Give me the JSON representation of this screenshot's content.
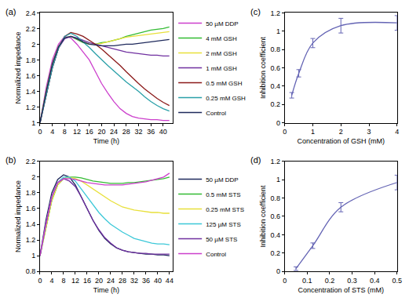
{
  "chart_data": [
    {
      "type": "line",
      "annotations": [
        "(a)"
      ],
      "x_label": "Time (h)",
      "y_label": "Normalized impedance",
      "x": [
        0,
        2,
        4,
        6,
        8,
        10,
        12,
        14,
        16,
        18,
        20,
        22,
        24,
        26,
        28,
        30,
        32,
        34,
        36,
        38,
        40,
        42
      ],
      "series": [
        {
          "name": "50 µM DDP",
          "color": "#cc3fcc",
          "values": [
            1,
            1.45,
            1.8,
            2.0,
            2.1,
            2.08,
            2.0,
            1.9,
            1.8,
            1.65,
            1.5,
            1.38,
            1.27,
            1.18,
            1.12,
            1.08,
            1.06,
            1.05,
            1.04,
            1.04,
            1.03,
            1.03
          ]
        },
        {
          "name": "4 mM GSH",
          "color": "#33bb33",
          "values": [
            1,
            1.4,
            1.75,
            1.97,
            2.08,
            2.1,
            2.06,
            2.02,
            2.0,
            2.0,
            2.02,
            2.03,
            2.05,
            2.07,
            2.1,
            2.12,
            2.14,
            2.16,
            2.18,
            2.19,
            2.2,
            2.22
          ]
        },
        {
          "name": "2 mM GSH",
          "color": "#e8e03a",
          "values": [
            1,
            1.4,
            1.75,
            1.97,
            2.08,
            2.1,
            2.07,
            2.03,
            2.0,
            2.0,
            2.01,
            2.03,
            2.05,
            2.07,
            2.09,
            2.1,
            2.11,
            2.12,
            2.13,
            2.14,
            2.15,
            2.16
          ]
        },
        {
          "name": "1 mM GSH",
          "color": "#7030a0",
          "values": [
            1,
            1.35,
            1.7,
            1.95,
            2.07,
            2.1,
            2.08,
            2.05,
            2.02,
            2.0,
            1.98,
            1.96,
            1.94,
            1.92,
            1.9,
            1.89,
            1.88,
            1.87,
            1.86,
            1.86,
            1.85,
            1.85
          ]
        },
        {
          "name": "0.5 mM GSH",
          "color": "#8b1a1a",
          "values": [
            1,
            1.35,
            1.7,
            1.95,
            2.1,
            2.15,
            2.13,
            2.1,
            2.05,
            2.0,
            1.94,
            1.87,
            1.8,
            1.73,
            1.65,
            1.57,
            1.5,
            1.43,
            1.37,
            1.31,
            1.26,
            1.22
          ]
        },
        {
          "name": "0.25 mM GSH",
          "color": "#2aa0a8",
          "values": [
            1,
            1.35,
            1.7,
            1.95,
            2.1,
            2.14,
            2.1,
            2.03,
            1.96,
            1.88,
            1.8,
            1.73,
            1.66,
            1.59,
            1.52,
            1.46,
            1.4,
            1.33,
            1.27,
            1.22,
            1.18,
            1.15
          ]
        },
        {
          "name": "Control",
          "color": "#1f2a5c",
          "values": [
            1,
            1.4,
            1.75,
            1.97,
            2.08,
            2.1,
            2.07,
            2.03,
            2.0,
            1.99,
            1.98,
            1.98,
            1.98,
            1.99,
            2.0,
            2.0,
            2.01,
            2.02,
            2.03,
            2.04,
            2.05,
            2.06
          ]
        }
      ],
      "xlim": [
        0,
        43
      ],
      "xticks": [
        0,
        4,
        8,
        12,
        16,
        20,
        24,
        28,
        32,
        36,
        40
      ],
      "ylim": [
        1,
        2.4
      ],
      "yticks": [
        1,
        1.2,
        1.4,
        1.6,
        1.8,
        2,
        2.2,
        2.4
      ],
      "grid": false,
      "legend": "right"
    },
    {
      "type": "line",
      "annotations": [
        "(b)"
      ],
      "x_label": "Time (h)",
      "y_label": "Normalized impedance",
      "x": [
        0,
        2,
        4,
        6,
        8,
        10,
        12,
        14,
        16,
        18,
        20,
        22,
        24,
        26,
        28,
        30,
        32,
        34,
        36,
        38,
        40,
        42,
        44
      ],
      "series": [
        {
          "name": "50 µM DDP",
          "color": "#1f2a5c",
          "values": [
            1,
            1.45,
            1.8,
            1.97,
            2.03,
            2.0,
            1.9,
            1.75,
            1.6,
            1.45,
            1.32,
            1.22,
            1.15,
            1.1,
            1.07,
            1.05,
            1.04,
            1.03,
            1.02,
            1.02,
            1.01,
            1.01,
            1.0
          ]
        },
        {
          "name": "0.5 mM STS",
          "color": "#33bb33",
          "values": [
            1,
            1.35,
            1.7,
            1.9,
            1.98,
            2.0,
            2.0,
            1.99,
            1.97,
            1.95,
            1.94,
            1.93,
            1.92,
            1.92,
            1.92,
            1.93,
            1.93,
            1.94,
            1.95,
            1.96,
            1.97,
            1.98,
            2.0
          ]
        },
        {
          "name": "0.25 mM STS",
          "color": "#e8e03a",
          "values": [
            1,
            1.35,
            1.7,
            1.9,
            1.98,
            2.0,
            1.98,
            1.95,
            1.9,
            1.85,
            1.8,
            1.75,
            1.7,
            1.66,
            1.62,
            1.6,
            1.58,
            1.57,
            1.56,
            1.55,
            1.55,
            1.54,
            1.54
          ]
        },
        {
          "name": "125 µM STS",
          "color": "#3cc8d8",
          "values": [
            1,
            1.4,
            1.75,
            1.93,
            2.0,
            2.0,
            1.95,
            1.85,
            1.75,
            1.65,
            1.55,
            1.47,
            1.4,
            1.35,
            1.3,
            1.26,
            1.22,
            1.2,
            1.18,
            1.16,
            1.15,
            1.15,
            1.14
          ]
        },
        {
          "name": "50 µM STS",
          "color": "#7030a0",
          "values": [
            1,
            1.4,
            1.75,
            1.93,
            1.98,
            1.95,
            1.88,
            1.75,
            1.6,
            1.45,
            1.33,
            1.23,
            1.16,
            1.1,
            1.07,
            1.05,
            1.04,
            1.03,
            1.03,
            1.02,
            1.02,
            1.02,
            1.02
          ]
        },
        {
          "name": "Control",
          "color": "#cc3fcc",
          "values": [
            1,
            1.4,
            1.75,
            1.93,
            1.98,
            1.98,
            1.97,
            1.95,
            1.93,
            1.92,
            1.91,
            1.9,
            1.9,
            1.9,
            1.9,
            1.91,
            1.92,
            1.93,
            1.94,
            1.96,
            1.98,
            2.0,
            2.05
          ]
        }
      ],
      "xlim": [
        0,
        45
      ],
      "xticks": [
        0,
        4,
        8,
        12,
        16,
        20,
        24,
        28,
        32,
        36,
        40,
        44
      ],
      "ylim": [
        0.8,
        2.2
      ],
      "yticks": [
        0.8,
        1,
        1.2,
        1.4,
        1.6,
        1.8,
        2,
        2.2
      ],
      "grid": false,
      "legend": "right"
    },
    {
      "type": "line",
      "annotations": [
        "(c)"
      ],
      "x_label": "Concentration of GSH (mM)",
      "y_label": "Inhibition coefficient",
      "x": [
        0.25,
        0.5,
        1,
        2,
        4
      ],
      "values": [
        0.3,
        0.54,
        0.87,
        1.06,
        1.09
      ],
      "errors": [
        0.03,
        0.04,
        0.05,
        0.08,
        0.08
      ],
      "color": "#6464b4",
      "line_style": "smooth",
      "xlim": [
        0,
        4
      ],
      "xticks": [
        0,
        1,
        2,
        3,
        4
      ],
      "ylim": [
        0,
        1.2
      ],
      "yticks": [
        0,
        0.2,
        0.4,
        0.6,
        0.8,
        1,
        1.2
      ],
      "grid": false
    },
    {
      "type": "line",
      "annotations": [
        "(d)"
      ],
      "x_label": "Concentration of STS (mM)",
      "y_label": "Inhibition coefficient",
      "x": [
        0.05,
        0.125,
        0.25,
        0.5
      ],
      "values": [
        0.03,
        0.28,
        0.7,
        0.97
      ],
      "errors": [
        0.02,
        0.03,
        0.05,
        0.08
      ],
      "color": "#6464b4",
      "line_style": "smooth",
      "xlim": [
        0,
        0.5
      ],
      "xticks": [
        0,
        0.1,
        0.2,
        0.3,
        0.4,
        0.5
      ],
      "ylim": [
        0,
        1.2
      ],
      "yticks": [
        0,
        0.2,
        0.4,
        0.6,
        0.8,
        1,
        1.2
      ],
      "grid": false
    }
  ]
}
